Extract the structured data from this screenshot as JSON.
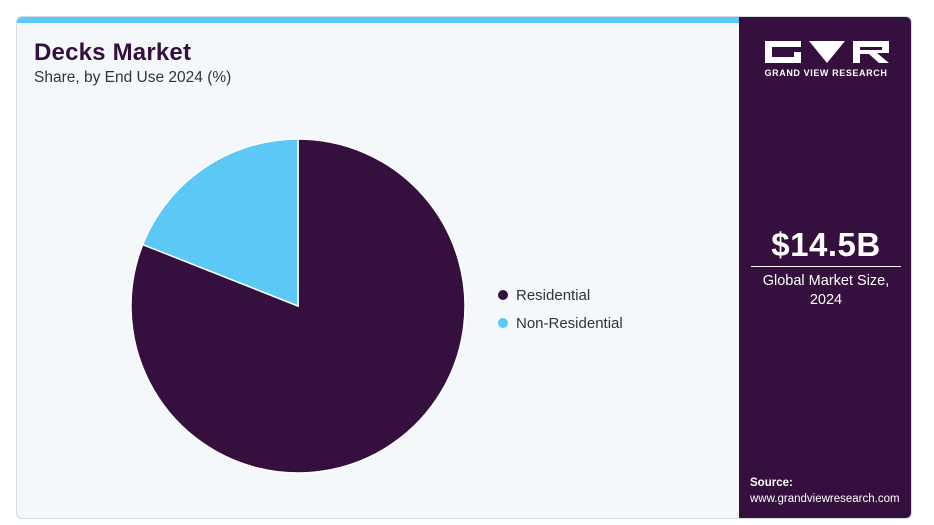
{
  "header": {
    "title": "Decks Market",
    "subtitle": "Share, by End Use 2024 (%)"
  },
  "colors": {
    "residential": "#35103f",
    "non_residential": "#5bc8f5",
    "topbar": "#5bc8f5",
    "sidebar": "#35103f"
  },
  "chart_data": {
    "type": "pie",
    "title": "Decks Market",
    "subtitle": "Share, by End Use 2024 (%)",
    "categories": [
      "Residential",
      "Non-Residential"
    ],
    "values": [
      81,
      19
    ],
    "unit": "%",
    "legend_position": "right"
  },
  "sidebar": {
    "brand": "GRAND VIEW RESEARCH",
    "logo_icon": "gvr-logo-icon",
    "market_value": "$14.5B",
    "market_caption": "Global Market Size, 2024",
    "source_label": "Source:",
    "source_url": "www.grandviewresearch.com"
  }
}
